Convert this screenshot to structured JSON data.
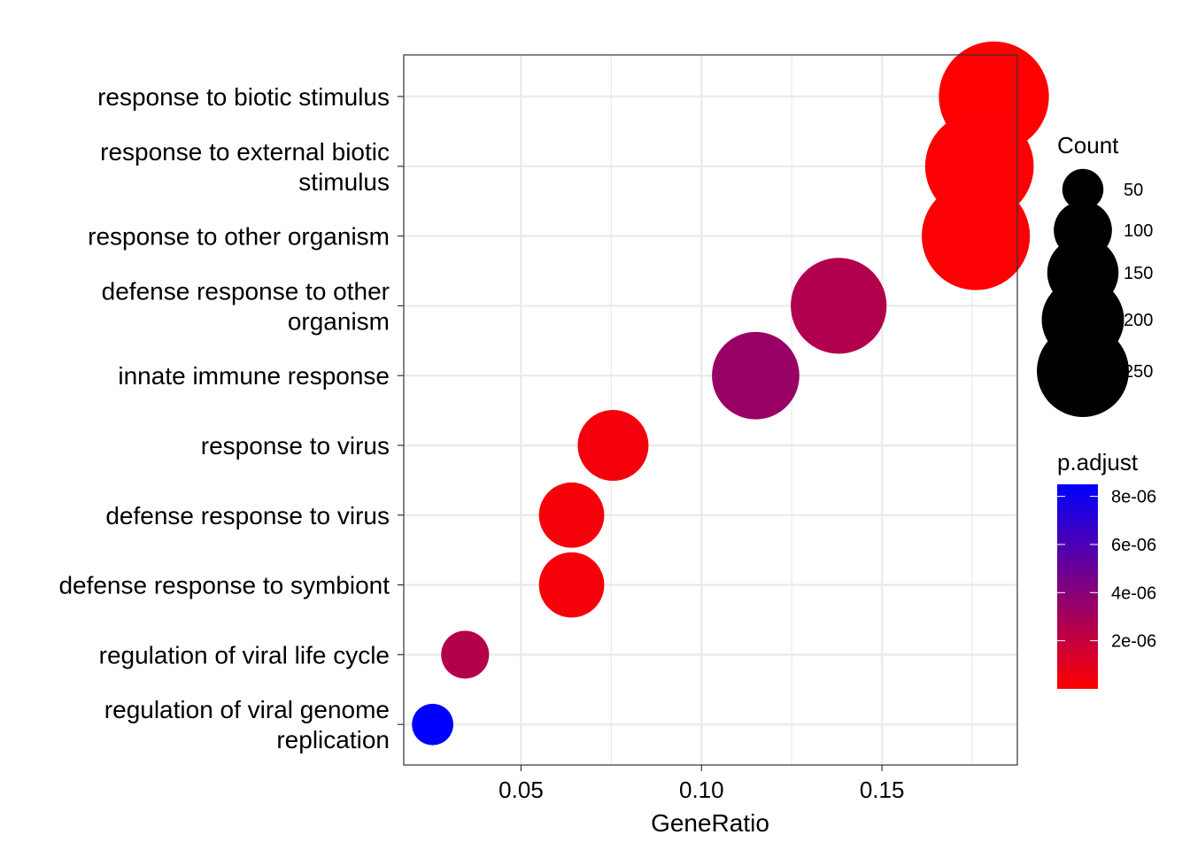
{
  "chart_data": {
    "type": "scatter",
    "xlabel": "GeneRatio",
    "ylabel": "",
    "title": "",
    "xlim": [
      0.0175,
      0.1875
    ],
    "x_ticks": [
      {
        "value": 0.05,
        "label": "0.05"
      },
      {
        "value": 0.1,
        "label": "0.10"
      },
      {
        "value": 0.15,
        "label": "0.15"
      }
    ],
    "grid": true,
    "categories": [
      {
        "lines": [
          "response to biotic stimulus"
        ]
      },
      {
        "lines": [
          "response to external biotic",
          "stimulus"
        ]
      },
      {
        "lines": [
          "response to other organism"
        ]
      },
      {
        "lines": [
          "defense response to other",
          "organism"
        ]
      },
      {
        "lines": [
          "innate immune response"
        ]
      },
      {
        "lines": [
          "response to virus"
        ]
      },
      {
        "lines": [
          "defense response to virus"
        ]
      },
      {
        "lines": [
          "defense response to symbiont"
        ]
      },
      {
        "lines": [
          "regulation of viral life cycle"
        ]
      },
      {
        "lines": [
          "regulation of viral genome",
          "replication"
        ]
      }
    ],
    "points": [
      {
        "x": 0.181,
        "count": 290,
        "p_adjust": 5e-08
      },
      {
        "x": 0.177,
        "count": 282,
        "p_adjust": 1e-07
      },
      {
        "x": 0.176,
        "count": 280,
        "p_adjust": 1e-07
      },
      {
        "x": 0.138,
        "count": 220,
        "p_adjust": 2.6e-06
      },
      {
        "x": 0.115,
        "count": 183,
        "p_adjust": 3.4e-06
      },
      {
        "x": 0.0755,
        "count": 120,
        "p_adjust": 4e-07
      },
      {
        "x": 0.064,
        "count": 102,
        "p_adjust": 3e-07
      },
      {
        "x": 0.064,
        "count": 102,
        "p_adjust": 3e-07
      },
      {
        "x": 0.0345,
        "count": 55,
        "p_adjust": 2.5e-06
      },
      {
        "x": 0.0255,
        "count": 41,
        "p_adjust": 8.5e-06
      }
    ],
    "legend_size": {
      "title": "Count",
      "placement": "right",
      "items": [
        {
          "value": 50,
          "label": "50"
        },
        {
          "value": 100,
          "label": "100"
        },
        {
          "value": 150,
          "label": "150"
        },
        {
          "value": 200,
          "label": "200"
        },
        {
          "value": 250,
          "label": "250"
        }
      ]
    },
    "legend_color": {
      "title": "p.adjust",
      "placement": "right",
      "range": [
        0,
        8.5e-06
      ],
      "low_color": "#ff0000",
      "high_color": "#0000ff",
      "ticks": [
        {
          "value": 8e-06,
          "label": "8e-06"
        },
        {
          "value": 6e-06,
          "label": "6e-06"
        },
        {
          "value": 4e-06,
          "label": "4e-06"
        },
        {
          "value": 2e-06,
          "label": "2e-06"
        }
      ]
    },
    "colors": {
      "grid": "#ebebeb",
      "panel_border": "#333333",
      "text": "#000000"
    }
  }
}
